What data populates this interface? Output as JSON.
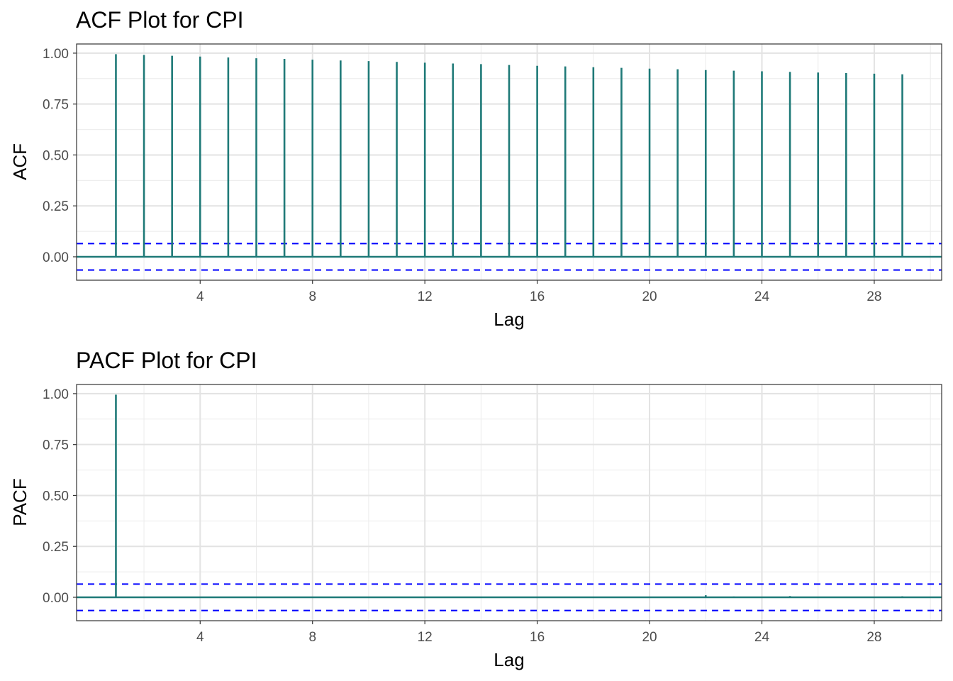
{
  "chart_data": [
    {
      "type": "bar",
      "title": "ACF Plot for CPI",
      "xlabel": "Lag",
      "ylabel": "ACF",
      "x_ticks": [
        "4",
        "8",
        "12",
        "16",
        "20",
        "24",
        "28"
      ],
      "y_ticks": [
        "0.00",
        "0.25",
        "0.50",
        "0.75",
        "1.00"
      ],
      "xlim": [
        -0.4,
        30.4
      ],
      "ylim": [
        -0.115,
        1.045
      ],
      "confidence_bound": 0.065,
      "lags": [
        1,
        2,
        3,
        4,
        5,
        6,
        7,
        8,
        9,
        10,
        11,
        12,
        13,
        14,
        15,
        16,
        17,
        18,
        19,
        20,
        21,
        22,
        23,
        24,
        25,
        26,
        27,
        28,
        29
      ],
      "values": [
        0.995,
        0.991,
        0.987,
        0.983,
        0.979,
        0.975,
        0.972,
        0.968,
        0.964,
        0.961,
        0.957,
        0.953,
        0.949,
        0.946,
        0.942,
        0.938,
        0.935,
        0.931,
        0.928,
        0.924,
        0.921,
        0.917,
        0.914,
        0.911,
        0.908,
        0.905,
        0.902,
        0.899,
        0.896
      ],
      "grid": true,
      "colors": {
        "bars": "#1f7a78",
        "bounds": "#0000ff",
        "zero_line": "#1f7a78"
      }
    },
    {
      "type": "bar",
      "title": "PACF Plot for CPI",
      "xlabel": "Lag",
      "ylabel": "PACF",
      "x_ticks": [
        "4",
        "8",
        "12",
        "16",
        "20",
        "24",
        "28"
      ],
      "y_ticks": [
        "0.00",
        "0.25",
        "0.50",
        "0.75",
        "1.00"
      ],
      "xlim": [
        -0.4,
        30.4
      ],
      "ylim": [
        -0.115,
        1.045
      ],
      "confidence_bound": 0.065,
      "lags": [
        1,
        2,
        3,
        4,
        5,
        6,
        7,
        8,
        9,
        10,
        11,
        12,
        13,
        14,
        15,
        16,
        17,
        18,
        19,
        20,
        21,
        22,
        23,
        24,
        25,
        26,
        27,
        28,
        29
      ],
      "values": [
        0.995,
        0.002,
        0.001,
        0.002,
        -0.001,
        0.001,
        0.002,
        -0.002,
        0.001,
        0.001,
        -0.001,
        0.002,
        0.001,
        -0.001,
        0.001,
        0.002,
        -0.001,
        0.001,
        -0.002,
        0.001,
        0.002,
        0.01,
        0.004,
        -0.002,
        0.006,
        -0.001,
        0.002,
        -0.001,
        0.005
      ],
      "grid": true,
      "colors": {
        "bars": "#1f7a78",
        "bounds": "#0000ff",
        "zero_line": "#1f7a78"
      }
    }
  ]
}
